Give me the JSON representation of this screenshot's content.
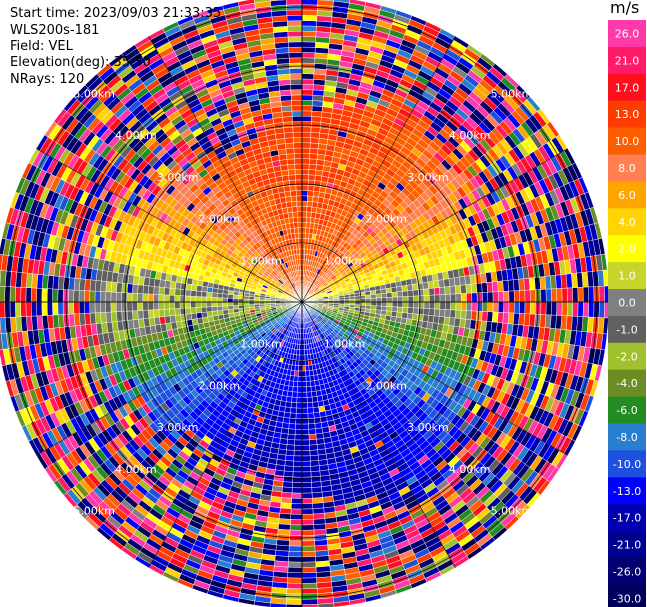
{
  "info": {
    "start_time": "Start time: 2023/09/03 21:33:35",
    "instrument": "WLS200s-181",
    "field": "Field: VEL",
    "elevation": "Elevation(deg): 35.30",
    "nrays": "NRays: 120"
  },
  "chart_data": {
    "type": "heatmap",
    "projection": "polar-ppi",
    "field": "VEL",
    "unit": "m/s",
    "nrays": 120,
    "range_rings_km": [
      1.0,
      2.0,
      3.0,
      4.0,
      5.0
    ],
    "ring_labels": [
      "1.00km",
      "2.00km",
      "3.00km",
      "4.00km",
      "5.00km"
    ],
    "max_range_km": 5.2,
    "colorbar": {
      "title": "m/s",
      "min": -30,
      "max": 30,
      "tick_labels": [
        "26.0",
        "21.0",
        "17.0",
        "13.0",
        "10.0",
        "8.0",
        "6.0",
        "4.0",
        "2.0",
        "1.0",
        "0.0",
        "-1.0",
        "-2.0",
        "-4.0",
        "-6.0",
        "-8.0",
        "-10.0",
        "-13.0",
        "-17.0",
        "-21.0",
        "-26.0",
        "-30.0"
      ],
      "colors": [
        "#ff3aa8",
        "#ff1a6a",
        "#ff0f1e",
        "#ff3c00",
        "#ff5e00",
        "#ff7f50",
        "#ffa500",
        "#ffd400",
        "#ffff00",
        "#c8d42a",
        "#808080",
        "#606060",
        "#a0c030",
        "#6a8e23",
        "#228b22",
        "#2a7ed0",
        "#1e50e0",
        "#0000ff",
        "#0000b0",
        "#000090",
        "#000070",
        "#00005a"
      ]
    }
  }
}
